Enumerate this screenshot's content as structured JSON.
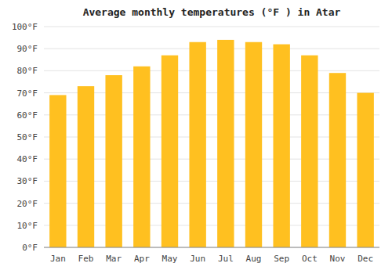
{
  "chart_data": {
    "type": "bar",
    "title": "Average monthly temperatures (°F ) in Atar",
    "categories": [
      "Jan",
      "Feb",
      "Mar",
      "Apr",
      "May",
      "Jun",
      "Jul",
      "Aug",
      "Sep",
      "Oct",
      "Nov",
      "Dec"
    ],
    "values": [
      69,
      73,
      78,
      82,
      87,
      93,
      94,
      93,
      92,
      87,
      79,
      70
    ],
    "color": "#FFC020",
    "ylim": [
      0,
      100
    ],
    "yticks": [
      {
        "value": 0,
        "label": "0°F"
      },
      {
        "value": 10,
        "label": "10°F"
      },
      {
        "value": 20,
        "label": "20°F"
      },
      {
        "value": 30,
        "label": "30°F"
      },
      {
        "value": 40,
        "label": "40°F"
      },
      {
        "value": 50,
        "label": "50°F"
      },
      {
        "value": 60,
        "label": "60°F"
      },
      {
        "value": 70,
        "label": "70°F"
      },
      {
        "value": 80,
        "label": "80°F"
      },
      {
        "value": 90,
        "label": "90°F"
      },
      {
        "value": 100,
        "label": "100°F"
      }
    ],
    "grid": true
  }
}
